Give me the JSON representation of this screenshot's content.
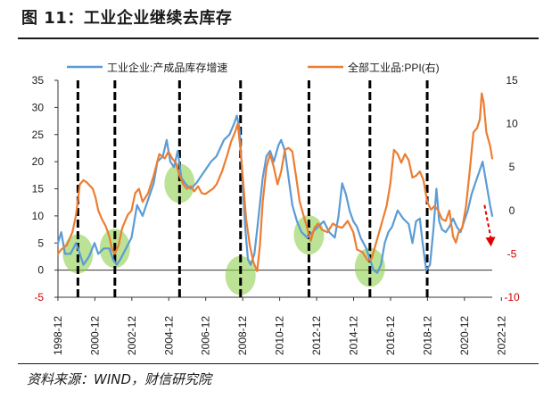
{
  "figure": {
    "title": "图 11：工业企业继续去库存",
    "source": "资料来源：WIND，财信研究院"
  },
  "chart_data": {
    "type": "line",
    "title": "图 11：工业企业继续去库存",
    "legend": [
      "工业企业:产成品库存增速",
      "全部工业品:PPI(右)"
    ],
    "left_axis": {
      "min": -5,
      "max": 35,
      "ticks": [
        "-5",
        "0",
        "5",
        "10",
        "15",
        "20",
        "25",
        "30",
        "35"
      ]
    },
    "right_axis": {
      "min": -10,
      "max": 15,
      "ticks": [
        "-10",
        "-5",
        "0",
        "5",
        "10",
        "15"
      ]
    },
    "x_axis": {
      "start": 1998.92,
      "end": 2022.42,
      "ticks": [
        "1998-12",
        "2000-12",
        "2002-12",
        "2004-12",
        "2006-12",
        "2008-12",
        "2010-12",
        "2012-12",
        "2014-12",
        "2016-12",
        "2018-12",
        "2020-12",
        "2022-12"
      ]
    },
    "vlines": [
      2000.0,
      2002.0,
      2005.5,
      2008.8,
      2012.5,
      2015.8,
      2018.9
    ],
    "series": [
      {
        "name": "工业企业:产成品库存增速",
        "axis": "left",
        "color": "#5b9bd5",
        "points": [
          [
            1998.92,
            5
          ],
          [
            1999.1,
            7
          ],
          [
            1999.3,
            3
          ],
          [
            1999.6,
            3
          ],
          [
            1999.9,
            5
          ],
          [
            2000.1,
            3
          ],
          [
            2000.3,
            1
          ],
          [
            2000.6,
            2.5
          ],
          [
            2000.9,
            5
          ],
          [
            2001.1,
            3
          ],
          [
            2001.4,
            4
          ],
          [
            2001.7,
            4
          ],
          [
            2001.9,
            2
          ],
          [
            2002.1,
            1
          ],
          [
            2002.3,
            2
          ],
          [
            2002.6,
            4
          ],
          [
            2002.9,
            6
          ],
          [
            2003.2,
            12
          ],
          [
            2003.5,
            10
          ],
          [
            2003.8,
            13
          ],
          [
            2004.1,
            16
          ],
          [
            2004.3,
            20
          ],
          [
            2004.6,
            21
          ],
          [
            2004.8,
            24
          ],
          [
            2005.0,
            20
          ],
          [
            2005.2,
            19
          ],
          [
            2005.4,
            22
          ],
          [
            2005.6,
            17
          ],
          [
            2005.8,
            16
          ],
          [
            2006.1,
            15
          ],
          [
            2006.4,
            16
          ],
          [
            2006.8,
            18
          ],
          [
            2007.2,
            20
          ],
          [
            2007.5,
            21
          ],
          [
            2007.9,
            24
          ],
          [
            2008.2,
            25
          ],
          [
            2008.45,
            27
          ],
          [
            2008.6,
            28.5
          ],
          [
            2008.75,
            26
          ],
          [
            2008.9,
            17
          ],
          [
            2009.05,
            8
          ],
          [
            2009.2,
            2
          ],
          [
            2009.35,
            1
          ],
          [
            2009.55,
            3
          ],
          [
            2009.75,
            9
          ],
          [
            2010.0,
            17
          ],
          [
            2010.2,
            21
          ],
          [
            2010.4,
            22
          ],
          [
            2010.6,
            20
          ],
          [
            2010.85,
            23
          ],
          [
            2011.0,
            24
          ],
          [
            2011.2,
            22
          ],
          [
            2011.4,
            17
          ],
          [
            2011.6,
            12
          ],
          [
            2011.85,
            9
          ],
          [
            2012.1,
            7
          ],
          [
            2012.4,
            6
          ],
          [
            2012.7,
            7
          ],
          [
            2013.0,
            8
          ],
          [
            2013.3,
            9
          ],
          [
            2013.6,
            7
          ],
          [
            2013.9,
            6
          ],
          [
            2014.1,
            10
          ],
          [
            2014.3,
            16
          ],
          [
            2014.5,
            14
          ],
          [
            2014.7,
            11
          ],
          [
            2014.9,
            9
          ],
          [
            2015.1,
            8
          ],
          [
            2015.3,
            6
          ],
          [
            2015.6,
            4
          ],
          [
            2015.8,
            2
          ],
          [
            2016.0,
            0
          ],
          [
            2016.2,
            -0.5
          ],
          [
            2016.4,
            1
          ],
          [
            2016.6,
            5
          ],
          [
            2016.8,
            7
          ],
          [
            2017.0,
            8
          ],
          [
            2017.3,
            11
          ],
          [
            2017.6,
            9.5
          ],
          [
            2017.9,
            8.5
          ],
          [
            2018.1,
            5
          ],
          [
            2018.3,
            9
          ],
          [
            2018.5,
            9.5
          ],
          [
            2018.65,
            5
          ],
          [
            2018.85,
            0
          ],
          [
            2019.05,
            1
          ],
          [
            2019.25,
            8
          ],
          [
            2019.4,
            15
          ],
          [
            2019.55,
            9
          ],
          [
            2019.7,
            7.5
          ],
          [
            2019.9,
            7
          ],
          [
            2020.1,
            8
          ],
          [
            2020.3,
            9.5
          ],
          [
            2020.5,
            8
          ],
          [
            2020.7,
            7
          ],
          [
            2020.9,
            9
          ],
          [
            2021.1,
            11
          ],
          [
            2021.3,
            14
          ],
          [
            2021.5,
            16
          ],
          [
            2021.7,
            18
          ],
          [
            2021.9,
            20
          ],
          [
            2022.1,
            16
          ],
          [
            2022.3,
            12
          ],
          [
            2022.42,
            10
          ]
        ]
      },
      {
        "name": "全部工业品:PPI(右)",
        "axis": "right",
        "color": "#ed7d31",
        "points": [
          [
            1998.92,
            -5
          ],
          [
            1999.1,
            -4.5
          ],
          [
            1999.4,
            -4
          ],
          [
            1999.7,
            -2.5
          ],
          [
            1999.9,
            -0.5
          ],
          [
            2000.1,
            3
          ],
          [
            2000.3,
            3.5
          ],
          [
            2000.5,
            3.2
          ],
          [
            2000.8,
            2.5
          ],
          [
            2000.95,
            1.5
          ],
          [
            2001.1,
            0
          ],
          [
            2001.3,
            -1
          ],
          [
            2001.5,
            -1.8
          ],
          [
            2001.7,
            -3
          ],
          [
            2001.85,
            -4.5
          ],
          [
            2002.0,
            -5
          ],
          [
            2002.2,
            -4
          ],
          [
            2002.4,
            -2
          ],
          [
            2002.7,
            -0.5
          ],
          [
            2002.9,
            0
          ],
          [
            2003.1,
            2
          ],
          [
            2003.3,
            2.5
          ],
          [
            2003.5,
            1
          ],
          [
            2003.8,
            2
          ],
          [
            2004.1,
            4
          ],
          [
            2004.4,
            6.5
          ],
          [
            2004.7,
            6
          ],
          [
            2004.9,
            6.8
          ],
          [
            2005.1,
            6
          ],
          [
            2005.3,
            5.5
          ],
          [
            2005.5,
            4
          ],
          [
            2005.7,
            3
          ],
          [
            2005.9,
            2.5
          ],
          [
            2006.1,
            2.8
          ],
          [
            2006.3,
            2.2
          ],
          [
            2006.5,
            2.8
          ],
          [
            2006.7,
            2.0
          ],
          [
            2006.9,
            1.9
          ],
          [
            2007.1,
            2.2
          ],
          [
            2007.3,
            2.5
          ],
          [
            2007.5,
            3
          ],
          [
            2007.8,
            4.5
          ],
          [
            2008.1,
            6.5
          ],
          [
            2008.3,
            8
          ],
          [
            2008.5,
            9
          ],
          [
            2008.65,
            10
          ],
          [
            2008.8,
            7
          ],
          [
            2008.95,
            3
          ],
          [
            2009.1,
            -1
          ],
          [
            2009.3,
            -4
          ],
          [
            2009.5,
            -6
          ],
          [
            2009.7,
            -7
          ],
          [
            2009.85,
            -4
          ],
          [
            2010.0,
            1
          ],
          [
            2010.2,
            5
          ],
          [
            2010.4,
            6.5
          ],
          [
            2010.6,
            5
          ],
          [
            2010.8,
            3
          ],
          [
            2011.0,
            4.5
          ],
          [
            2011.2,
            7
          ],
          [
            2011.4,
            7.2
          ],
          [
            2011.6,
            6.8
          ],
          [
            2011.8,
            4
          ],
          [
            2012.0,
            1
          ],
          [
            2012.2,
            -0.5
          ],
          [
            2012.4,
            -2
          ],
          [
            2012.6,
            -3.5
          ],
          [
            2012.8,
            -2
          ],
          [
            2013.0,
            -1.5
          ],
          [
            2013.2,
            -2.2
          ],
          [
            2013.5,
            -2.5
          ],
          [
            2013.8,
            -1.5
          ],
          [
            2014.0,
            -1.8
          ],
          [
            2014.3,
            -2
          ],
          [
            2014.6,
            -1.2
          ],
          [
            2014.9,
            -2.5
          ],
          [
            2015.1,
            -4.5
          ],
          [
            2015.4,
            -4.8
          ],
          [
            2015.7,
            -5.8
          ],
          [
            2015.9,
            -5.5
          ],
          [
            2016.1,
            -4
          ],
          [
            2016.3,
            -2.5
          ],
          [
            2016.5,
            -1
          ],
          [
            2016.7,
            0.5
          ],
          [
            2016.9,
            3
          ],
          [
            2017.1,
            7
          ],
          [
            2017.3,
            6.5
          ],
          [
            2017.5,
            5.5
          ],
          [
            2017.7,
            6.5
          ],
          [
            2017.9,
            5.8
          ],
          [
            2018.1,
            3.8
          ],
          [
            2018.3,
            4
          ],
          [
            2018.5,
            4.5
          ],
          [
            2018.7,
            3.5
          ],
          [
            2018.9,
            1
          ],
          [
            2019.1,
            0.1
          ],
          [
            2019.3,
            0.5
          ],
          [
            2019.5,
            0
          ],
          [
            2019.7,
            -1
          ],
          [
            2019.9,
            -1.2
          ],
          [
            2020.1,
            0
          ],
          [
            2020.3,
            -3
          ],
          [
            2020.45,
            -3.7
          ],
          [
            2020.6,
            -2.5
          ],
          [
            2020.8,
            -2
          ],
          [
            2021.0,
            0.5
          ],
          [
            2021.2,
            4.5
          ],
          [
            2021.4,
            9
          ],
          [
            2021.6,
            9.5
          ],
          [
            2021.75,
            10.5
          ],
          [
            2021.85,
            13.5
          ],
          [
            2021.95,
            12.5
          ],
          [
            2022.1,
            9
          ],
          [
            2022.3,
            7.5
          ],
          [
            2022.42,
            6
          ]
        ]
      }
    ],
    "highlight_ellipses": [
      [
        2000.0,
        3.0
      ],
      [
        2002.0,
        4.0
      ],
      [
        2005.5,
        16.0
      ],
      [
        2008.8,
        -1.0
      ],
      [
        2012.5,
        6.5
      ],
      [
        2015.8,
        0.5
      ]
    ],
    "arrow": {
      "from": [
        2022.0,
        12.0
      ],
      "to": [
        2022.35,
        5.0
      ],
      "color": "#e00000"
    }
  }
}
